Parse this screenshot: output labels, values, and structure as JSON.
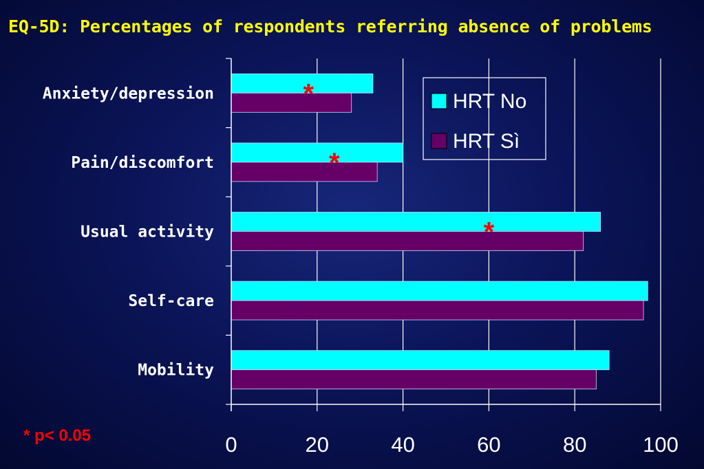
{
  "chart_data": {
    "type": "bar",
    "orientation": "horizontal",
    "title": "EQ-5D: Percentages of respondents referring absence of problems",
    "categories": [
      "Anxiety/depression",
      "Pain/discomfort",
      "Usual activity",
      "Self-care",
      "Mobility"
    ],
    "series": [
      {
        "name": "HRT No",
        "color": "#00ffff",
        "values": [
          33,
          40,
          86,
          97,
          88
        ]
      },
      {
        "name": "HRT Sì",
        "color": "#660066",
        "values": [
          28,
          34,
          82,
          96,
          85
        ]
      }
    ],
    "xlim": [
      0,
      100
    ],
    "xticks": [
      0,
      20,
      40,
      60,
      80,
      100
    ],
    "grid": true,
    "legend_position": "top-right",
    "significant_categories": [
      "Anxiety/depression",
      "Pain/discomfort",
      "Usual activity"
    ],
    "significance_marker": "*",
    "footnote": "* p< 0.05"
  }
}
